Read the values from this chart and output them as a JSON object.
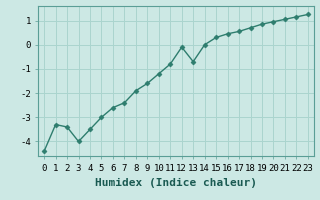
{
  "x": [
    0,
    1,
    2,
    3,
    4,
    5,
    6,
    7,
    8,
    9,
    10,
    11,
    12,
    13,
    14,
    15,
    16,
    17,
    18,
    19,
    20,
    21,
    22,
    23
  ],
  "y": [
    -4.4,
    -3.3,
    -3.4,
    -4.0,
    -3.5,
    -3.0,
    -2.6,
    -2.4,
    -1.9,
    -1.6,
    -1.2,
    -0.8,
    -0.1,
    -0.7,
    0.0,
    0.3,
    0.45,
    0.55,
    0.7,
    0.85,
    0.95,
    1.05,
    1.15,
    1.25
  ],
  "line_color": "#2e7d6e",
  "marker": "D",
  "marker_size": 2.5,
  "bg_color": "#cce8e4",
  "grid_color": "#aad4ce",
  "xlabel": "Humidex (Indice chaleur)",
  "xlim": [
    -0.5,
    23.5
  ],
  "ylim": [
    -4.6,
    1.6
  ],
  "yticks": [
    -4,
    -3,
    -2,
    -1,
    0,
    1
  ],
  "xticks": [
    0,
    1,
    2,
    3,
    4,
    5,
    6,
    7,
    8,
    9,
    10,
    11,
    12,
    13,
    14,
    15,
    16,
    17,
    18,
    19,
    20,
    21,
    22,
    23
  ],
  "tick_fontsize": 6.5,
  "xlabel_fontsize": 8,
  "line_width": 1.0,
  "spine_color": "#5a9e96"
}
